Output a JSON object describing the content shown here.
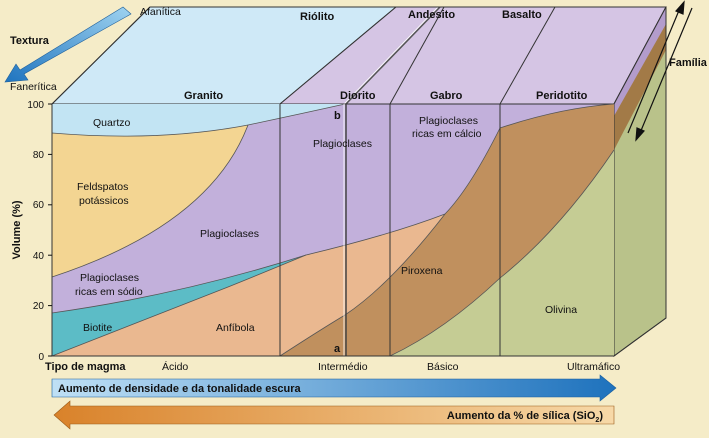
{
  "texture": {
    "title": "Textura",
    "aphanitic": "Afanítica",
    "phaneritic": "Fanerítica"
  },
  "family_label": "Família",
  "top_rocks": [
    "Riólito",
    "Andesito",
    "Basalto"
  ],
  "front_rocks": [
    "Granito",
    "Diorito",
    "Gabro",
    "Peridotito"
  ],
  "y_axis": {
    "label": "Volume (%)",
    "ticks": [
      "100",
      "80",
      "60",
      "40",
      "20",
      "0"
    ]
  },
  "minerals": {
    "quartz": "Quartzo",
    "k_feldspar_1": "Feldspatos",
    "k_feldspar_2": "potássicos",
    "plag_center": "Plagioclases",
    "plag_diorite": "Plagioclases",
    "plag_na_1": "Plagioclases",
    "plag_na_2": "ricas em sódio",
    "plag_ca_1": "Plagioclases",
    "plag_ca_2": "ricas em cálcio",
    "biotite": "Biotite",
    "amphibole": "Anfíbola",
    "pyroxene": "Piroxena",
    "olivine": "Olivina"
  },
  "markers": {
    "a": "a",
    "b": "b"
  },
  "magma": {
    "label": "Tipo de magma",
    "types": [
      "Ácido",
      "Intermédio",
      "Básico",
      "Ultramáfico"
    ]
  },
  "arrows": {
    "density": "Aumento de densidade e da tonalidade escura",
    "silica": "Aumento da % de sílica (SiO",
    "silica_sub": "2",
    "silica_end": ")"
  },
  "colors": {
    "background": "#f5ecc8",
    "quartz": "#c2e4f3",
    "k_feldspar": "#f3d592",
    "plagioclase": "#c2b0db",
    "biotite": "#5cbcc6",
    "amphibole": "#eab890",
    "pyroxene": "#c0905e",
    "olivine": "#c5cc94",
    "blue_arrow": "#2f85c8",
    "orange_arrow": "#e0902f"
  }
}
